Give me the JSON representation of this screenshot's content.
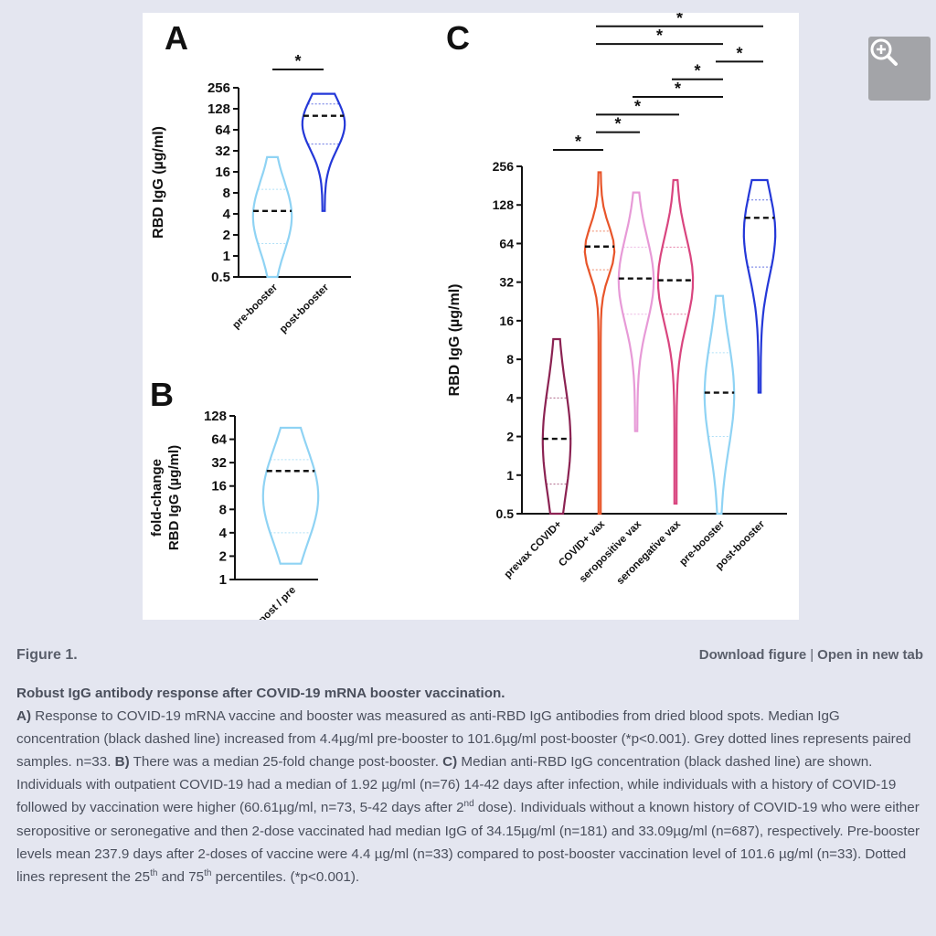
{
  "figure": {
    "label": "Figure 1.",
    "download_label": "Download figure",
    "separator": "|",
    "open_label": "Open in new tab",
    "zoom_icon": "zoom-in-icon"
  },
  "caption": {
    "title": "Robust IgG antibody response after COVID-19 mRNA booster vaccination.",
    "a_label": "A)",
    "a_text": " Response to COVID-19 mRNA vaccine and booster was measured as anti-RBD IgG antibodies from dried blood spots. Median IgG concentration (black dashed line) increased from 4.4µg/ml pre-booster to 101.6µg/ml post-booster (*p<0.001). Grey dotted lines represents paired samples. n=33. ",
    "b_label": "B)",
    "b_text": " There was a median 25-fold change post-booster. ",
    "c_label": "C)",
    "c_text_1": " Median anti-RBD IgG concentration (black dashed line) are shown. Individuals with outpatient COVID-19 had a median of 1.92 µg/ml (n=76) 14-42 days after infection, while individuals with a history of COVID-19 followed by vaccination were higher (60.61µg/ml, n=73, 5-42 days after 2",
    "c_sup_1": "nd",
    "c_text_2": " dose). Individuals without a known history of COVID-19 who were either seropositive or seronegative and then 2-dose vaccinated had median IgG of 34.15µg/ml (n=181) and 33.09µg/ml (n=687), respectively. Pre-booster levels mean 237.9 days after 2-doses of vaccine were 4.4 µg/ml (n=33) compared to post-booster vaccination level of 101.6 µg/ml (n=33). Dotted lines represent the 25",
    "c_sup_2": "th",
    "c_text_3": " and 75",
    "c_sup_3": "th",
    "c_text_4": " percentiles. (*p<0.001)."
  },
  "chart_data": [
    {
      "panel": "A",
      "type": "violin",
      "ylabel": "RBD IgG (µg/ml)",
      "yscale": "log2",
      "ylim": [
        0.5,
        256
      ],
      "yticks": [
        "0.5",
        "1",
        "2",
        "4",
        "8",
        "16",
        "32",
        "64",
        "128",
        "256"
      ],
      "categories": [
        "pre-booster",
        "post-booster"
      ],
      "colors": [
        "#8fd3f4",
        "#2438d8"
      ],
      "min": [
        0.5,
        4.4
      ],
      "max": [
        26,
        210
      ],
      "median": [
        4.4,
        101.6
      ],
      "p25": [
        1.5,
        40
      ],
      "p75": [
        9,
        150
      ],
      "paired_lines": true,
      "n": 33,
      "significance": [
        {
          "pair": [
            "pre-booster",
            "post-booster"
          ],
          "label": "*"
        }
      ]
    },
    {
      "panel": "B",
      "type": "violin",
      "ylabel": "fold-change RBD IgG (µg/ml)",
      "yscale": "log2",
      "ylim": [
        1,
        128
      ],
      "yticks": [
        "1",
        "2",
        "4",
        "8",
        "16",
        "32",
        "64",
        "128"
      ],
      "categories": [
        "post / pre"
      ],
      "colors": [
        "#8fd3f4"
      ],
      "min": [
        1.6
      ],
      "max": [
        90
      ],
      "median": [
        25
      ],
      "p25": [
        4
      ],
      "p75": [
        35
      ]
    },
    {
      "panel": "C",
      "type": "violin",
      "ylabel": "RBD IgG (µg/ml)",
      "yscale": "log2",
      "ylim": [
        0.5,
        256
      ],
      "yticks": [
        "0.5",
        "1",
        "2",
        "4",
        "8",
        "16",
        "32",
        "64",
        "128",
        "256"
      ],
      "categories": [
        "prevax COVID+",
        "COVID+ vax",
        "seropositive vax",
        "seronegative vax",
        "pre-booster",
        "post-booster"
      ],
      "colors": [
        "#8b2252",
        "#e8552a",
        "#e79ad7",
        "#d9457f",
        "#8fd3f4",
        "#2438d8"
      ],
      "min": [
        0.5,
        0.5,
        2.2,
        0.6,
        0.5,
        4.4
      ],
      "max": [
        11.5,
        230,
        160,
        200,
        25,
        200
      ],
      "median": [
        1.92,
        60.61,
        34.15,
        33.09,
        4.4,
        101.6
      ],
      "p25": [
        0.85,
        40,
        18,
        18,
        2,
        42
      ],
      "p75": [
        4,
        80,
        60,
        60,
        9,
        140
      ],
      "significance": [
        {
          "pair": [
            "prevax COVID+",
            "COVID+ vax"
          ],
          "label": "*"
        },
        {
          "pair": [
            "COVID+ vax",
            "seropositive vax"
          ],
          "label": "*"
        },
        {
          "pair": [
            "COVID+ vax",
            "seronegative vax"
          ],
          "label": "*"
        },
        {
          "pair": [
            "seropositive vax",
            "pre-booster"
          ],
          "label": "*"
        },
        {
          "pair": [
            "seronegative vax",
            "pre-booster"
          ],
          "label": "*"
        },
        {
          "pair": [
            "pre-booster",
            "post-booster"
          ],
          "label": "*"
        },
        {
          "pair": [
            "COVID+ vax",
            "pre-booster"
          ],
          "label": "*"
        },
        {
          "pair": [
            "COVID+ vax",
            "post-booster"
          ],
          "label": "*"
        },
        {
          "pair": [
            "seropositive vax",
            "post-booster"
          ],
          "label": "*"
        },
        {
          "pair": [
            "seronegative vax",
            "post-booster"
          ],
          "label": "*"
        },
        {
          "pair": [
            "prevax COVID+",
            "post-booster"
          ],
          "label": "*"
        }
      ]
    }
  ]
}
